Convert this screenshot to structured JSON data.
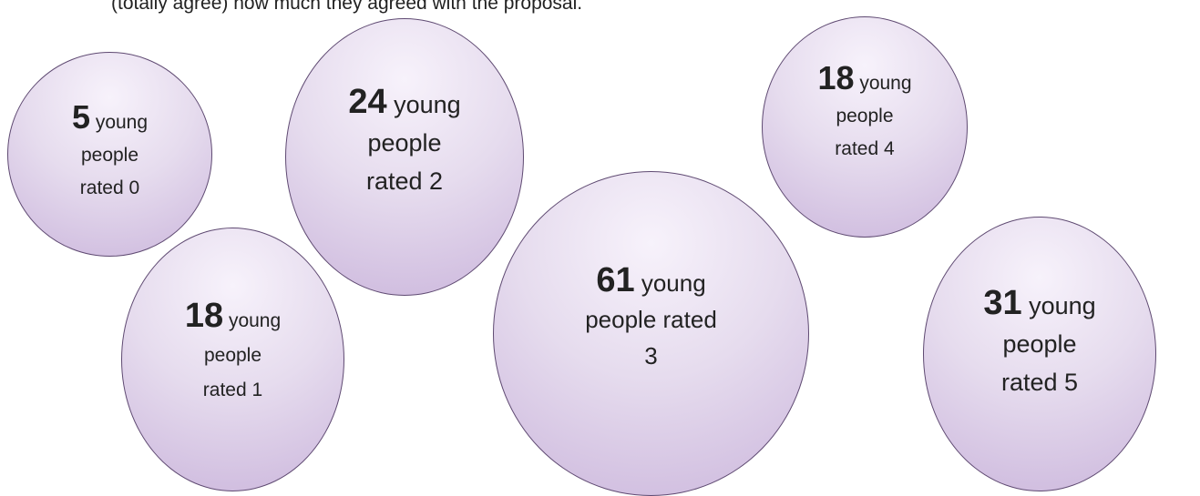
{
  "intro_text": "(totally agree) how much they agreed with the proposal.",
  "bubbles": [
    {
      "count": "5",
      "word": "young",
      "line2": "people",
      "line3": "rated 0"
    },
    {
      "count": "24",
      "word": "young",
      "line2": "people",
      "line3": "rated  2"
    },
    {
      "count": "18",
      "word": "young",
      "line2": "people",
      "line3": "rated 4"
    },
    {
      "count": "18",
      "word": "young",
      "line2": "people",
      "line3": "rated 1"
    },
    {
      "count": "61",
      "word": "young",
      "line2": "people rated",
      "line3": "3"
    },
    {
      "count": "31",
      "word": "young",
      "line2": "people",
      "line3": "rated  5"
    }
  ],
  "colors": {
    "bubble_fill_light": "#f7f2fb",
    "bubble_fill_dark": "#cbb6dc",
    "bubble_border": "#5f4a72",
    "text": "#222222"
  }
}
